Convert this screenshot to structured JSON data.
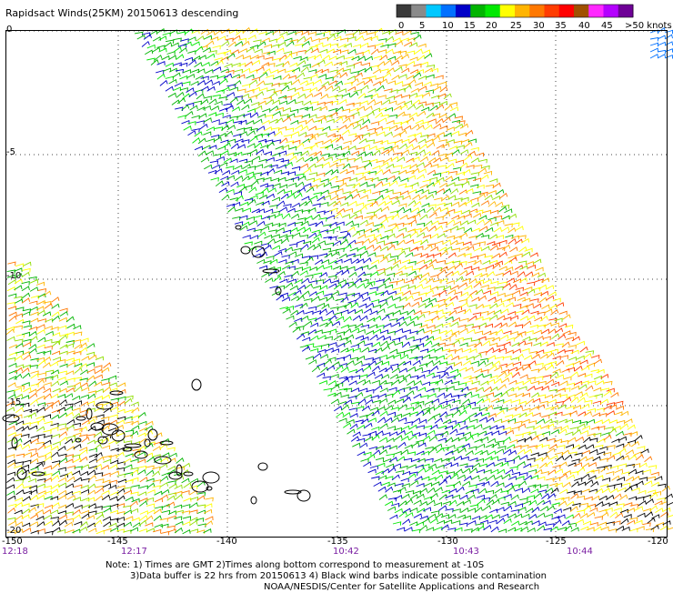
{
  "title": "Rapidsact Winds(25KM) 20150613 descending",
  "legend": {
    "unit": ">50 knots",
    "colors": [
      "#3a3a3a",
      "#8a8a8a",
      "#00c8ff",
      "#0070ff",
      "#0000c8",
      "#00b400",
      "#00e800",
      "#ffff00",
      "#ffb400",
      "#ff7800",
      "#ff3c00",
      "#ff0000",
      "#a05000",
      "#ff28ff",
      "#b400ff",
      "#6e0096"
    ],
    "labels": [
      "0",
      "5",
      "10",
      "15",
      "20",
      "25",
      "30",
      "35",
      "40",
      "45",
      ">50 knots"
    ]
  },
  "axes": {
    "lon_labels": [
      "-150",
      "-145",
      "-140",
      "-135",
      "-130",
      "-125",
      "-120"
    ],
    "lat_labels": [
      "0",
      "-5",
      "-10",
      "-15",
      "-20"
    ],
    "time_labels": [
      "12:18",
      "12:17",
      "10:42",
      "10:43",
      "10:44"
    ]
  },
  "note": {
    "line1": "Note: 1) Times are GMT 2)Times along bottom correspond to measurement at -10S",
    "line2": "3)Data buffer is 22 hrs from 20150613 4) Black wind barbs indicate possible contamination",
    "line3": "NOAA/NESDIS/Center for Satellite Applications and Research"
  }
}
